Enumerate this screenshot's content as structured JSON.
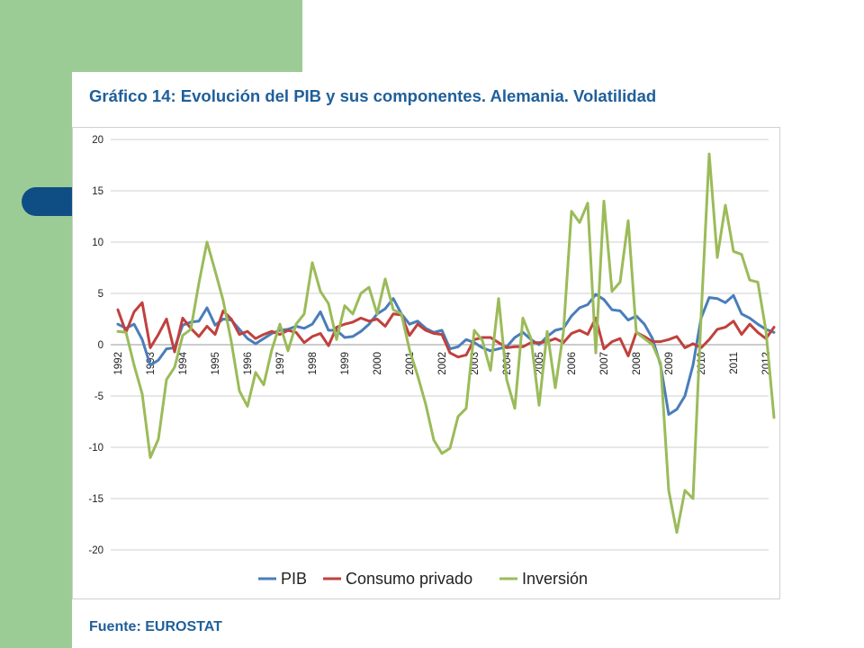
{
  "slide": {
    "title": "Gráfico 14: Evolución del PIB y sus componentes. Alemania. Volatilidad",
    "source": "Fuente: EUROSTAT",
    "colors": {
      "green": "#9ccc95",
      "navy": "#0f4e84",
      "title": "#1f5f9a"
    }
  },
  "chart_data": {
    "type": "line",
    "title": "",
    "xlabel": "",
    "ylabel": "",
    "ylim": [
      -20,
      20
    ],
    "yticks": [
      20,
      15,
      10,
      5,
      0,
      -5,
      -10,
      -15,
      -20
    ],
    "xticks": [
      "1992",
      "1993",
      "1994",
      "1995",
      "1996",
      "1997",
      "1998",
      "1999",
      "2000",
      "2001",
      "2002",
      "2003",
      "2004",
      "2005",
      "2006",
      "2007",
      "2008",
      "2009",
      "2010",
      "2011",
      "2012"
    ],
    "periods_per_year": 4,
    "grid": true,
    "legend": "bottom",
    "series": [
      {
        "name": "PIB",
        "color": "#4a7dba",
        "values": [
          2.0,
          1.6,
          2.0,
          0.5,
          -2.0,
          -1.5,
          -0.4,
          -0.3,
          1.9,
          2.2,
          2.3,
          3.6,
          1.9,
          2.5,
          2.4,
          1.5,
          0.6,
          0.1,
          0.6,
          1.1,
          1.4,
          1.5,
          1.8,
          1.6,
          2.0,
          3.2,
          1.4,
          1.4,
          0.7,
          0.8,
          1.3,
          2.0,
          3.0,
          3.5,
          4.5,
          3.0,
          2.0,
          2.3,
          1.6,
          1.2,
          1.4,
          -0.4,
          -0.2,
          0.5,
          0.2,
          -0.3,
          -0.6,
          -0.4,
          -0.2,
          0.7,
          1.2,
          0.5,
          0.0,
          0.8,
          1.4,
          1.6,
          2.8,
          3.6,
          3.9,
          4.9,
          4.4,
          3.4,
          3.3,
          2.4,
          2.8,
          2.0,
          0.6,
          -2.0,
          -6.8,
          -6.3,
          -5.0,
          -2.0,
          2.6,
          4.6,
          4.5,
          4.1,
          4.8,
          3.0,
          2.6,
          2.0,
          1.5,
          1.2
        ]
      },
      {
        "name": "Consumo privado",
        "color": "#c0413d",
        "values": [
          3.4,
          1.2,
          3.2,
          4.1,
          -0.3,
          1.0,
          2.5,
          -0.7,
          2.6,
          1.6,
          0.8,
          1.8,
          1.0,
          3.3,
          2.5,
          1.0,
          1.3,
          0.6,
          1.0,
          1.3,
          1.0,
          1.4,
          1.2,
          0.2,
          0.8,
          1.1,
          -0.1,
          1.7,
          2.0,
          2.2,
          2.6,
          2.3,
          2.5,
          1.8,
          3.0,
          2.9,
          0.9,
          2.0,
          1.4,
          1.1,
          1.0,
          -0.8,
          -1.2,
          -1.0,
          0.5,
          0.7,
          0.7,
          0.2,
          -0.3,
          -0.2,
          -0.2,
          0.2,
          0.2,
          0.3,
          0.6,
          0.2,
          1.1,
          1.4,
          1.0,
          2.6,
          -0.4,
          0.3,
          0.6,
          -1.1,
          1.2,
          0.8,
          0.3,
          0.3,
          0.5,
          0.8,
          -0.3,
          0.1,
          -0.3,
          0.5,
          1.5,
          1.7,
          2.3,
          1.0,
          2.0,
          1.2,
          0.6,
          1.7
        ]
      },
      {
        "name": "Inversión",
        "color": "#9bbb59",
        "values": [
          1.3,
          1.2,
          -2.0,
          -4.8,
          -11.0,
          -9.2,
          -3.4,
          -2.2,
          0.9,
          1.5,
          6.0,
          10.0,
          7.2,
          4.3,
          0.3,
          -4.5,
          -6.0,
          -2.7,
          -3.9,
          -0.5,
          2.0,
          -0.6,
          2.0,
          3.0,
          8.0,
          5.2,
          4.0,
          0.5,
          3.8,
          3.0,
          5.0,
          5.6,
          3.0,
          6.4,
          3.4,
          3.0,
          -0.5,
          -3.0,
          -5.8,
          -9.3,
          -10.6,
          -10.1,
          -7.0,
          -6.2,
          1.4,
          0.4,
          -2.5,
          4.5,
          -3.4,
          -6.2,
          2.6,
          0.6,
          -5.9,
          1.3,
          -4.2,
          1.2,
          13.0,
          11.9,
          13.8,
          -0.8,
          14.0,
          5.2,
          6.1,
          12.1,
          1.2,
          0.6,
          0.0,
          -1.8,
          -14.2,
          -18.3,
          -14.2,
          -15.0,
          2.8,
          18.6,
          8.5,
          13.6,
          9.1,
          8.8,
          6.3,
          6.1,
          1.4,
          -7.1
        ]
      }
    ]
  }
}
